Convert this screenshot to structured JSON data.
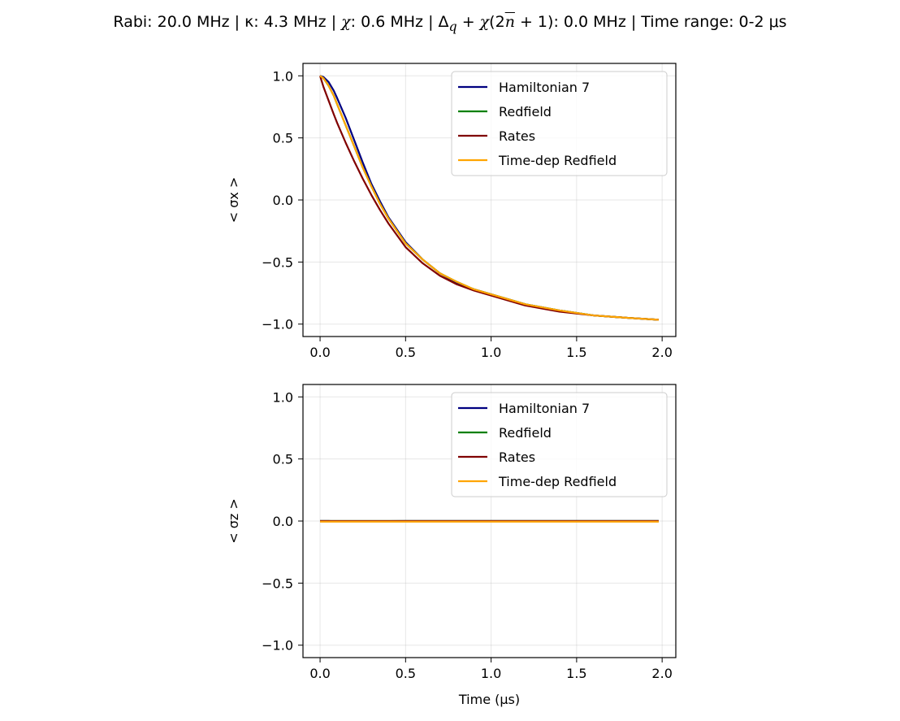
{
  "title": {
    "rabi": "Rabi: 20.0 MHz",
    "kappa": "κ: 4.3 MHz",
    "chi_label": "χ",
    "chi_value": ": 0.6 MHz",
    "delta_expr": "Δ",
    "delta_sub": "q",
    "delta_plus": " + ",
    "delta_chi": "χ",
    "delta_paren_open": "(2",
    "delta_nbar": "n",
    "delta_paren_close": " + 1)",
    "delta_value": ": 0.0 MHz",
    "time_range": "Time range: 0-2 μs",
    "sep": " | "
  },
  "colors": {
    "hamiltonian": "#000080",
    "redfield": "#008000",
    "rates": "#800000",
    "timedep": "#FFA500"
  },
  "chart_data": [
    {
      "type": "line",
      "name": "top-panel",
      "ylabel": "< σx >",
      "xlabel": "",
      "xlim": [
        -0.1,
        2.08
      ],
      "ylim": [
        -1.1,
        1.1
      ],
      "xticks": [
        0.0,
        0.5,
        1.0,
        1.5,
        2.0
      ],
      "xtick_labels": [
        "0.0",
        "0.5",
        "1.0",
        "1.5",
        "2.0"
      ],
      "yticks": [
        1.0,
        0.5,
        0.0,
        -0.5,
        -1.0
      ],
      "ytick_labels": [
        "1.0",
        "0.5",
        "0.0",
        "−0.5",
        "−1.0"
      ],
      "grid": true,
      "legend": "top-right",
      "series": [
        {
          "name": "Hamiltonian 7",
          "color": "#000080",
          "x": [
            0,
            0.02,
            0.05,
            0.08,
            0.1,
            0.15,
            0.2,
            0.25,
            0.3,
            0.35,
            0.4,
            0.5,
            0.6,
            0.7,
            0.8,
            0.9,
            1.0,
            1.2,
            1.4,
            1.6,
            1.8,
            1.98
          ],
          "y": [
            1.0,
            0.99,
            0.95,
            0.88,
            0.82,
            0.66,
            0.48,
            0.3,
            0.13,
            -0.01,
            -0.14,
            -0.34,
            -0.48,
            -0.59,
            -0.67,
            -0.72,
            -0.76,
            -0.84,
            -0.89,
            -0.93,
            -0.95,
            -0.965
          ]
        },
        {
          "name": "Redfield",
          "color": "#008000",
          "x": [
            0,
            0.02,
            0.05,
            0.08,
            0.1,
            0.15,
            0.2,
            0.25,
            0.3,
            0.35,
            0.4,
            0.5,
            0.6,
            0.7,
            0.8,
            0.9,
            1.0,
            1.2,
            1.4,
            1.6,
            1.8,
            1.98
          ],
          "y": [
            1.0,
            0.98,
            0.92,
            0.84,
            0.77,
            0.6,
            0.43,
            0.26,
            0.11,
            -0.03,
            -0.15,
            -0.35,
            -0.48,
            -0.59,
            -0.66,
            -0.72,
            -0.76,
            -0.84,
            -0.89,
            -0.93,
            -0.95,
            -0.965
          ]
        },
        {
          "name": "Rates",
          "color": "#800000",
          "x": [
            0,
            0.02,
            0.05,
            0.08,
            0.1,
            0.15,
            0.2,
            0.25,
            0.3,
            0.35,
            0.4,
            0.5,
            0.6,
            0.7,
            0.8,
            0.9,
            1.0,
            1.2,
            1.4,
            1.6,
            1.8,
            1.98
          ],
          "y": [
            1.0,
            0.91,
            0.8,
            0.69,
            0.62,
            0.46,
            0.31,
            0.17,
            0.04,
            -0.08,
            -0.19,
            -0.38,
            -0.51,
            -0.61,
            -0.68,
            -0.73,
            -0.77,
            -0.85,
            -0.9,
            -0.93,
            -0.95,
            -0.965
          ]
        },
        {
          "name": "Time-dep Redfield",
          "color": "#FFA500",
          "x": [
            0,
            0.02,
            0.05,
            0.08,
            0.1,
            0.15,
            0.2,
            0.25,
            0.3,
            0.35,
            0.4,
            0.5,
            0.6,
            0.7,
            0.8,
            0.9,
            1.0,
            1.2,
            1.4,
            1.6,
            1.8,
            1.98
          ],
          "y": [
            1.0,
            0.98,
            0.92,
            0.84,
            0.77,
            0.6,
            0.43,
            0.26,
            0.11,
            -0.03,
            -0.15,
            -0.35,
            -0.48,
            -0.59,
            -0.66,
            -0.72,
            -0.76,
            -0.84,
            -0.89,
            -0.93,
            -0.95,
            -0.965
          ]
        }
      ]
    },
    {
      "type": "line",
      "name": "bottom-panel",
      "ylabel": "< σz >",
      "xlabel": "Time (μs)",
      "xlim": [
        -0.1,
        2.08
      ],
      "ylim": [
        -1.1,
        1.1
      ],
      "xticks": [
        0.0,
        0.5,
        1.0,
        1.5,
        2.0
      ],
      "xtick_labels": [
        "0.0",
        "0.5",
        "1.0",
        "1.5",
        "2.0"
      ],
      "yticks": [
        1.0,
        0.5,
        0.0,
        -0.5,
        -1.0
      ],
      "ytick_labels": [
        "1.0",
        "0.5",
        "0.0",
        "−0.5",
        "−1.0"
      ],
      "grid": true,
      "legend": "top-right",
      "series": [
        {
          "name": "Hamiltonian 7",
          "color": "#000080",
          "x": [
            0,
            0.05,
            0.1,
            0.2,
            0.5,
            1.0,
            1.5,
            1.98
          ],
          "y": [
            0.0,
            0.0,
            -0.003,
            -0.002,
            0.0,
            0.0,
            0.0,
            0.0
          ]
        },
        {
          "name": "Redfield",
          "color": "#008000",
          "x": [
            0,
            0.5,
            1.0,
            1.5,
            1.98
          ],
          "y": [
            0.0,
            0.0,
            0.0,
            0.0,
            0.0
          ]
        },
        {
          "name": "Rates",
          "color": "#800000",
          "x": [
            0,
            0.5,
            1.0,
            1.5,
            1.98
          ],
          "y": [
            0.0,
            0.0,
            0.0,
            0.0,
            0.0
          ]
        },
        {
          "name": "Time-dep Redfield",
          "color": "#FFA500",
          "x": [
            0,
            0.5,
            1.0,
            1.5,
            1.98
          ],
          "y": [
            -0.005,
            -0.005,
            -0.005,
            -0.005,
            -0.005
          ]
        }
      ]
    }
  ]
}
